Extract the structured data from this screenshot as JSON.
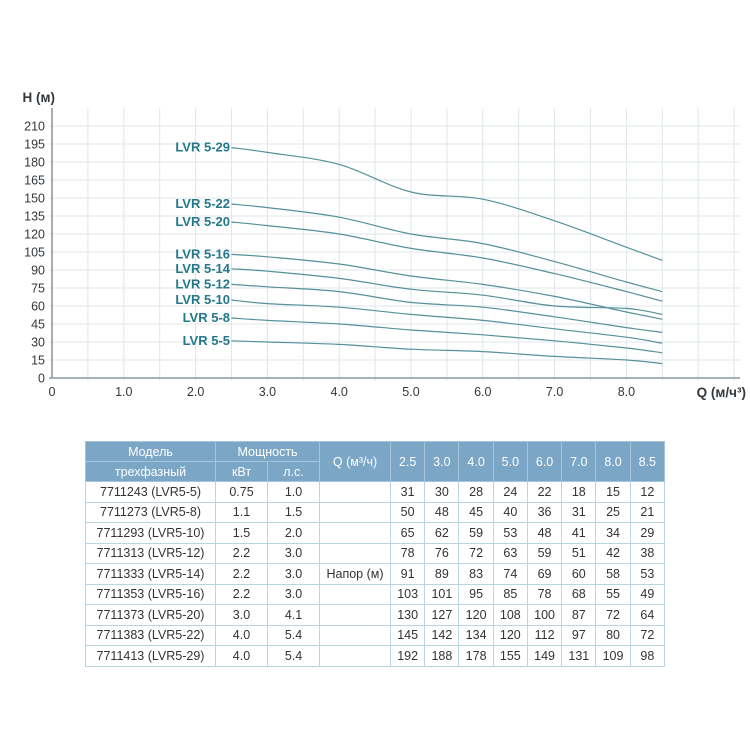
{
  "chart": {
    "y_axis_title": "Н (м)",
    "x_axis_title": "Q (м/ч³)",
    "colors": {
      "curve": "#55909b",
      "curve_label": "#23798b",
      "grid": "#dfe7ea",
      "axis": "#8f989f",
      "tick_text": "#33383c"
    }
  },
  "chart_data": {
    "type": "line",
    "title": "",
    "xlabel": "Q (м/ч³)",
    "ylabel": "Н (м)",
    "xlim": [
      0,
      9.6
    ],
    "ylim": [
      0,
      225
    ],
    "grid": true,
    "legend_position": "inline-labels-left-of-curves",
    "x": [
      2.5,
      3.0,
      4.0,
      5.0,
      6.0,
      7.0,
      8.0,
      8.5
    ],
    "x_tick_values": [
      0,
      1,
      2,
      3,
      4,
      5,
      6,
      7,
      8
    ],
    "x_tick_labels": [
      "0",
      "1.0",
      "2.0",
      "3.0",
      "4.0",
      "5.0",
      "6.0",
      "7.0",
      "8.0"
    ],
    "y_ticks": [
      0,
      15,
      30,
      45,
      60,
      75,
      90,
      105,
      120,
      135,
      150,
      165,
      180,
      195,
      210
    ],
    "series": [
      {
        "name": "LVR 5-29",
        "values": [
          192,
          188,
          178,
          155,
          149,
          131,
          109,
          98
        ]
      },
      {
        "name": "LVR 5-22",
        "values": [
          145,
          142,
          134,
          120,
          112,
          97,
          80,
          72
        ]
      },
      {
        "name": "LVR 5-20",
        "values": [
          130,
          127,
          120,
          108,
          100,
          87,
          72,
          64
        ]
      },
      {
        "name": "LVR 5-16",
        "values": [
          103,
          101,
          95,
          85,
          78,
          68,
          55,
          49
        ]
      },
      {
        "name": "LVR 5-14",
        "values": [
          91,
          89,
          83,
          74,
          69,
          60,
          58,
          53
        ]
      },
      {
        "name": "LVR 5-12",
        "values": [
          78,
          76,
          72,
          63,
          59,
          51,
          42,
          38
        ]
      },
      {
        "name": "LVR 5-10",
        "values": [
          65,
          62,
          59,
          53,
          48,
          41,
          34,
          29
        ]
      },
      {
        "name": "LVR 5-8",
        "values": [
          50,
          48,
          45,
          40,
          36,
          31,
          25,
          21
        ]
      },
      {
        "name": "LVR 5-5",
        "values": [
          31,
          30,
          28,
          24,
          22,
          18,
          15,
          12
        ]
      }
    ]
  },
  "table": {
    "header": {
      "model_line1": "Модель",
      "model_line2": "трехфазный",
      "power": "Мощность",
      "kw": "кВт",
      "hp": "л.с.",
      "flow": "Q (м³/ч)"
    },
    "flow_columns": [
      "2.5",
      "3.0",
      "4.0",
      "5.0",
      "6.0",
      "7.0",
      "8.0",
      "8.5"
    ],
    "head_row_label": "Напор (м)",
    "rows": [
      {
        "model": "7711243 (LVR5-5)",
        "kw": "0.75",
        "hp": "1.0",
        "q": "",
        "values": [
          31,
          30,
          28,
          24,
          22,
          18,
          15,
          12
        ]
      },
      {
        "model": "7711273 (LVR5-8)",
        "kw": "1.1",
        "hp": "1.5",
        "q": "",
        "values": [
          50,
          48,
          45,
          40,
          36,
          31,
          25,
          21
        ]
      },
      {
        "model": "7711293 (LVR5-10)",
        "kw": "1.5",
        "hp": "2.0",
        "q": "",
        "values": [
          65,
          62,
          59,
          53,
          48,
          41,
          34,
          29
        ]
      },
      {
        "model": "7711313 (LVR5-12)",
        "kw": "2.2",
        "hp": "3.0",
        "q": "",
        "values": [
          78,
          76,
          72,
          63,
          59,
          51,
          42,
          38
        ]
      },
      {
        "model": "7711333 (LVR5-14)",
        "kw": "2.2",
        "hp": "3.0",
        "q": "Напор (м)",
        "values": [
          91,
          89,
          83,
          74,
          69,
          60,
          58,
          53
        ]
      },
      {
        "model": "7711353 (LVR5-16)",
        "kw": "2.2",
        "hp": "3.0",
        "q": "",
        "values": [
          103,
          101,
          95,
          85,
          78,
          68,
          55,
          49
        ]
      },
      {
        "model": "7711373 (LVR5-20)",
        "kw": "3.0",
        "hp": "4.1",
        "q": "",
        "values": [
          130,
          127,
          120,
          108,
          100,
          87,
          72,
          64
        ]
      },
      {
        "model": "7711383 (LVR5-22)",
        "kw": "4.0",
        "hp": "5.4",
        "q": "",
        "values": [
          145,
          142,
          134,
          120,
          112,
          97,
          80,
          72
        ]
      },
      {
        "model": "7711413 (LVR5-29)",
        "kw": "4.0",
        "hp": "5.4",
        "q": "",
        "values": [
          192,
          188,
          178,
          155,
          149,
          131,
          109,
          98
        ]
      }
    ]
  }
}
